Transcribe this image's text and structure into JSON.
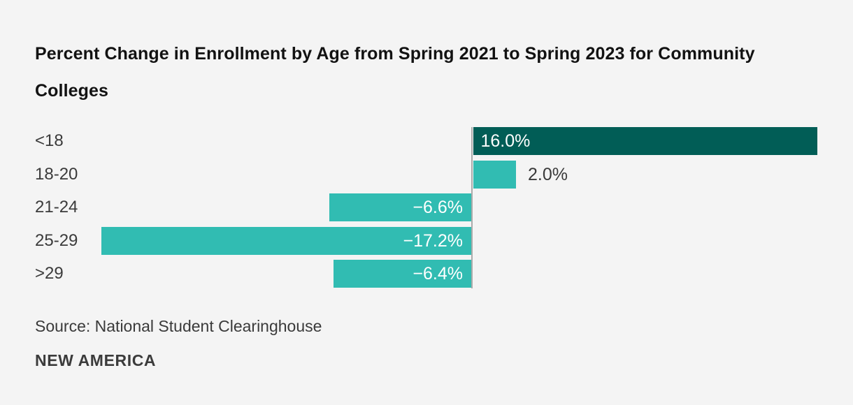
{
  "title": {
    "line1": "Percent Change in Enrollment by Age from Spring 2021 to Spring 2023 for Community",
    "line2": "Colleges"
  },
  "chart_data": {
    "type": "bar",
    "orientation": "horizontal",
    "title": "Percent Change in Enrollment by Age from Spring 2021 to Spring 2023 for Community Colleges",
    "categories": [
      "<18",
      "18-20",
      "21-24",
      "25-29",
      ">29"
    ],
    "values": [
      16.0,
      2.0,
      -6.6,
      -17.2,
      -6.4
    ],
    "value_labels": [
      "16.0%",
      "2.0%",
      "−6.6%",
      "−17.2%",
      "−6.4%"
    ],
    "bar_colors": [
      "#015D56",
      "#31BCB2",
      "#31BCB2",
      "#31BCB2",
      "#31BCB2"
    ],
    "xlabel": "",
    "ylabel": "",
    "xlim": [
      -20.3,
      16.0
    ],
    "grid": false,
    "legend": false,
    "zero_baseline": true
  },
  "colors": {
    "background": "#F4F4F4",
    "bar_dark_teal": "#015D56",
    "bar_light_teal": "#31BCB2",
    "axis_line": "#ABABAB",
    "title_text": "#121212",
    "label_text": "#3B3B3B",
    "value_inside_text": "#FFFFFF"
  },
  "source": "Source: National Student Clearinghouse",
  "branding": "NEW AMERICA"
}
